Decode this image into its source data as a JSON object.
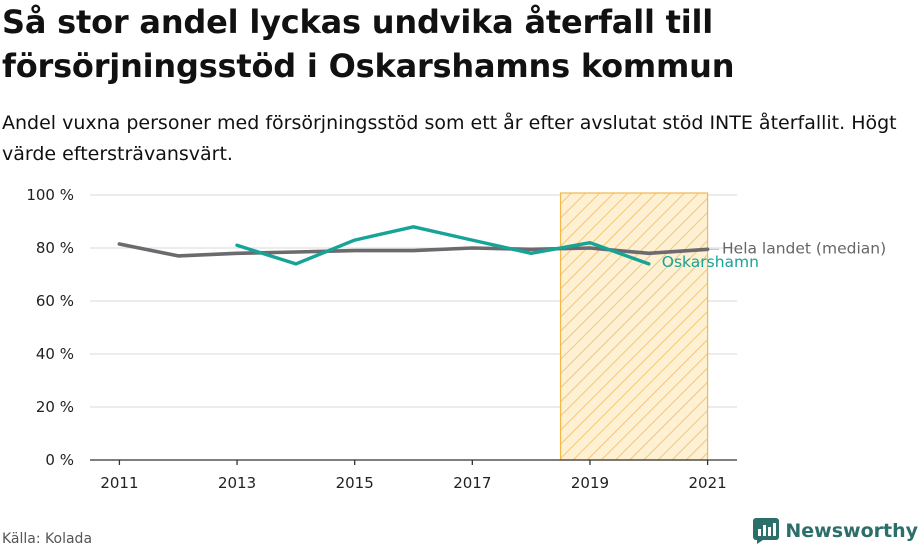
{
  "header": {
    "title": "Så stor andel lyckas undvika återfall till försörjningsstöd i Oskarshamns kommun",
    "subtitle": "Andel vuxna personer med försörjningsstöd som ett år efter avslutat stöd INTE återfallit. Högt värde eftersträvansvärt."
  },
  "footer": {
    "source": "Källa: Kolada",
    "brand": "Newsworthy"
  },
  "colors": {
    "national": "#6b6a6e",
    "municipality": "#17a398",
    "highlight_fill": "#ffd58a",
    "highlight_stroke": "#f3b74a",
    "brand": "#2c6e6a"
  },
  "chart_data": {
    "type": "line",
    "x": [
      2011,
      2012,
      2013,
      2014,
      2015,
      2016,
      2017,
      2018,
      2019,
      2020,
      2021
    ],
    "xticks": [
      2011,
      2013,
      2015,
      2017,
      2019,
      2021
    ],
    "yticks": [
      0,
      20,
      40,
      60,
      80,
      100
    ],
    "ylim": [
      0,
      100
    ],
    "xlim": [
      2010.5,
      2021.5
    ],
    "y_suffix": " %",
    "series": [
      {
        "name": "Hela landet (median)",
        "color": "#6b6a6e",
        "values": [
          81.5,
          77,
          78,
          78.5,
          79,
          79,
          80,
          79.5,
          80,
          78,
          79.5
        ]
      },
      {
        "name": "Oskarshamn",
        "color": "#17a398",
        "values": [
          null,
          null,
          81,
          74,
          83,
          88,
          83,
          78,
          82,
          74,
          null
        ]
      }
    ],
    "highlight": {
      "from": 2018.5,
      "to": 2021,
      "pattern": "diagonal-hatch"
    },
    "grid": "horizontal"
  }
}
